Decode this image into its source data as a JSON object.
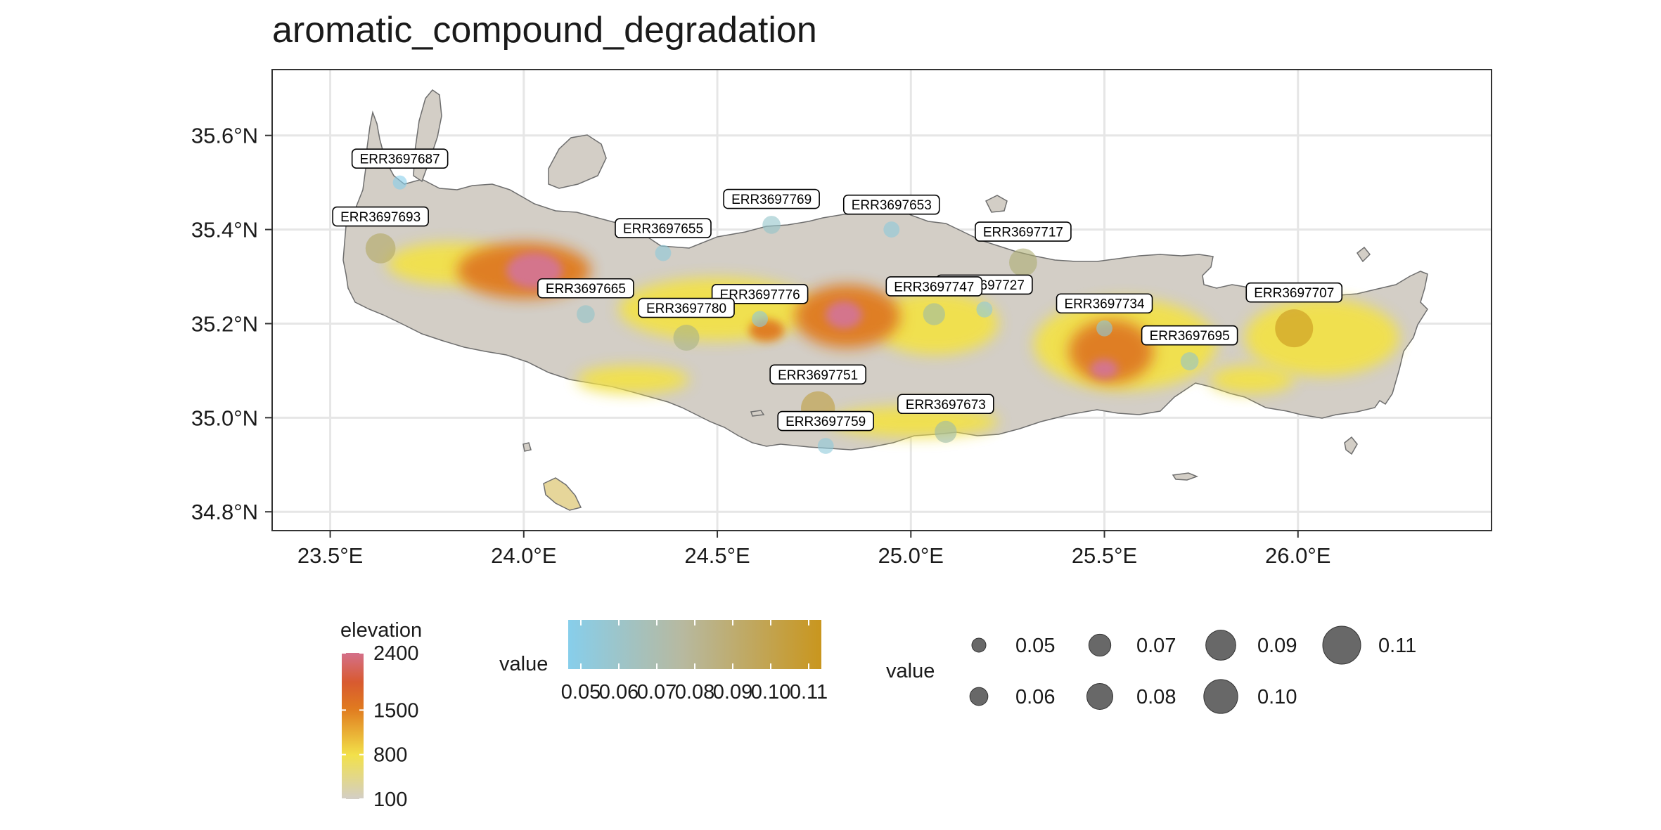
{
  "title": "aromatic_compound_degradation",
  "map": {
    "lon_range": [
      23.35,
      26.5
    ],
    "lat_range": [
      34.76,
      35.74
    ],
    "x_ticks": [
      {
        "value": 23.5,
        "label": "23.5°E"
      },
      {
        "value": 24.0,
        "label": "24.0°E"
      },
      {
        "value": 24.5,
        "label": "24.5°E"
      },
      {
        "value": 25.0,
        "label": "25.0°E"
      },
      {
        "value": 25.5,
        "label": "25.5°E"
      },
      {
        "value": 26.0,
        "label": "26.0°E"
      }
    ],
    "y_ticks": [
      {
        "value": 35.6,
        "label": "35.6°N"
      },
      {
        "value": 35.4,
        "label": "35.4°N"
      },
      {
        "value": 35.2,
        "label": "35.2°N"
      },
      {
        "value": 35.0,
        "label": "35.0°N"
      },
      {
        "value": 34.8,
        "label": "34.8°N"
      }
    ],
    "grid": true,
    "land_color": "#d3cec6",
    "elevation_colors": {
      "low": "#d3cec6",
      "mid": "#f2e14a",
      "high": "#e07a1f",
      "peak": "#d4708a"
    }
  },
  "samples": [
    {
      "id": "ERR3697687",
      "lon": 23.68,
      "lat": 35.5,
      "value": 0.05
    },
    {
      "id": "ERR3697693",
      "lon": 23.63,
      "lat": 35.36,
      "value": 0.09
    },
    {
      "id": "ERR3697665",
      "lon": 24.16,
      "lat": 35.22,
      "value": 0.06
    },
    {
      "id": "ERR3697655",
      "lon": 24.36,
      "lat": 35.35,
      "value": 0.055
    },
    {
      "id": "ERR3697769",
      "lon": 24.64,
      "lat": 35.41,
      "value": 0.06
    },
    {
      "id": "ERR3697653",
      "lon": 24.95,
      "lat": 35.4,
      "value": 0.055
    },
    {
      "id": "ERR3697717",
      "lon": 25.29,
      "lat": 35.33,
      "value": 0.085
    },
    {
      "id": "ERR3697727",
      "lon": 25.19,
      "lat": 35.23,
      "value": 0.055
    },
    {
      "id": "ERR3697747",
      "lon": 25.06,
      "lat": 35.22,
      "value": 0.07
    },
    {
      "id": "ERR3697776",
      "lon": 24.61,
      "lat": 35.21,
      "value": 0.055
    },
    {
      "id": "ERR3697780",
      "lon": 24.42,
      "lat": 35.17,
      "value": 0.08
    },
    {
      "id": "ERR3697734",
      "lon": 25.5,
      "lat": 35.19,
      "value": 0.055
    },
    {
      "id": "ERR3697695",
      "lon": 25.72,
      "lat": 35.12,
      "value": 0.06
    },
    {
      "id": "ERR3697707",
      "lon": 25.99,
      "lat": 35.19,
      "value": 0.11
    },
    {
      "id": "ERR3697751",
      "lon": 24.76,
      "lat": 35.02,
      "value": 0.1
    },
    {
      "id": "ERR3697759",
      "lon": 24.78,
      "lat": 34.94,
      "value": 0.055
    },
    {
      "id": "ERR3697673",
      "lon": 25.09,
      "lat": 34.97,
      "value": 0.07
    }
  ],
  "legend_elevation": {
    "title": "elevation",
    "ticks": [
      {
        "value": 2400,
        "label": "2400"
      },
      {
        "value": 1500,
        "label": "1500"
      },
      {
        "value": 800,
        "label": "800"
      },
      {
        "value": 100,
        "label": "100"
      }
    ]
  },
  "legend_color": {
    "title": "value",
    "color_low": "#87ceeb",
    "color_high": "#c9961e",
    "ticks": [
      "0.05",
      "0.06",
      "0.07",
      "0.08",
      "0.09",
      "0.10",
      "0.11"
    ]
  },
  "legend_size": {
    "title": "value",
    "items": [
      {
        "value": 0.05,
        "label": "0.05"
      },
      {
        "value": 0.06,
        "label": "0.06"
      },
      {
        "value": 0.07,
        "label": "0.07"
      },
      {
        "value": 0.08,
        "label": "0.08"
      },
      {
        "value": 0.09,
        "label": "0.09"
      },
      {
        "value": 0.1,
        "label": "0.10"
      },
      {
        "value": 0.11,
        "label": "0.11"
      }
    ]
  }
}
